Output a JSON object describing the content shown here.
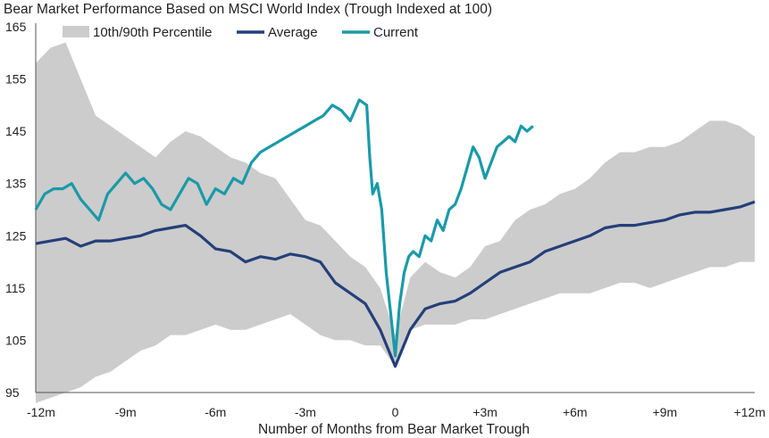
{
  "chart_data": {
    "type": "line",
    "title": "Bear Market Performance Based on MSCI World Index (Trough Indexed at 100)",
    "xlabel": "Number of Months from Bear Market Trough",
    "ylabel": "",
    "xlim": [
      -12,
      12
    ],
    "ylim": [
      95,
      165
    ],
    "yticks": [
      95,
      105,
      115,
      125,
      135,
      145,
      155,
      165
    ],
    "xticks": [
      -12,
      -9,
      -6,
      -3,
      0,
      3,
      6,
      9,
      12
    ],
    "xtick_labels": [
      "-12m",
      "-9m",
      "-6m",
      "-3m",
      "0",
      "+3m",
      "+6m",
      "+9m",
      "+12m"
    ],
    "legend_position": "top",
    "grid": false,
    "colors": {
      "band": "#cccccc",
      "average": "#243f7a",
      "current": "#1a9aa8",
      "axis": "#555555"
    },
    "series": [
      {
        "name": "10th/90th Percentile",
        "kind": "band",
        "x": [
          -12,
          -11.5,
          -11,
          -10.5,
          -10,
          -9.5,
          -9,
          -8.5,
          -8,
          -7.5,
          -7,
          -6.5,
          -6,
          -5.5,
          -5,
          -4.5,
          -4,
          -3.5,
          -3,
          -2.5,
          -2,
          -1.5,
          -1,
          -0.5,
          0,
          0.5,
          1,
          1.5,
          2,
          2.5,
          3,
          3.5,
          4,
          4.5,
          5,
          5.5,
          6,
          6.5,
          7,
          7.5,
          8,
          8.5,
          9,
          9.5,
          10,
          10.5,
          11,
          11.5,
          12
        ],
        "upper": [
          158,
          161,
          162,
          155,
          148,
          146,
          144,
          142,
          140,
          143,
          145,
          144,
          142,
          140,
          139,
          137,
          136,
          132,
          128,
          127,
          124,
          121,
          119,
          115,
          106,
          117,
          120,
          118,
          117,
          119,
          123,
          124,
          128,
          130,
          131,
          133,
          134,
          136,
          139,
          141,
          141,
          142,
          142,
          143,
          145,
          147,
          147,
          146,
          144
        ],
        "lower": [
          93,
          94,
          95,
          96,
          98,
          99,
          101,
          103,
          104,
          106,
          106,
          107,
          108,
          107,
          107,
          108,
          109,
          110,
          108,
          106,
          105,
          105,
          104,
          104,
          100,
          107,
          108,
          108,
          108,
          109,
          109,
          110,
          111,
          112,
          113,
          114,
          114,
          114,
          115,
          116,
          116,
          115,
          116,
          117,
          118,
          119,
          119,
          120,
          120
        ]
      },
      {
        "name": "Average",
        "x": [
          -12,
          -11.5,
          -11,
          -10.5,
          -10,
          -9.5,
          -9,
          -8.5,
          -8,
          -7.5,
          -7,
          -6.5,
          -6,
          -5.5,
          -5,
          -4.5,
          -4,
          -3.5,
          -3,
          -2.5,
          -2,
          -1.5,
          -1,
          -0.5,
          0,
          0.5,
          1,
          1.5,
          2,
          2.5,
          3,
          3.5,
          4,
          4.5,
          5,
          5.5,
          6,
          6.5,
          7,
          7.5,
          8,
          8.5,
          9,
          9.5,
          10,
          10.5,
          11,
          11.5,
          12
        ],
        "values": [
          123.5,
          124,
          124.5,
          123,
          124,
          124,
          124.5,
          125,
          126,
          126.5,
          127,
          125,
          122.5,
          122,
          120,
          121,
          120.5,
          121.5,
          121,
          120,
          116,
          114,
          112,
          107,
          100,
          107,
          111,
          112,
          112.5,
          114,
          116,
          118,
          119,
          120,
          122,
          123,
          124,
          125,
          126.5,
          127,
          127,
          127.5,
          128,
          129,
          129.5,
          129.5,
          130,
          130.5,
          131.5
        ]
      },
      {
        "name": "Current",
        "x": [
          -12,
          -11.7,
          -11.4,
          -11.1,
          -10.8,
          -10.5,
          -10.2,
          -9.9,
          -9.6,
          -9.3,
          -9,
          -8.7,
          -8.4,
          -8.1,
          -7.8,
          -7.5,
          -7.2,
          -6.9,
          -6.6,
          -6.3,
          -6,
          -5.7,
          -5.4,
          -5.1,
          -4.8,
          -4.5,
          -4.2,
          -3.9,
          -3.6,
          -3.3,
          -3,
          -2.7,
          -2.4,
          -2.1,
          -1.8,
          -1.5,
          -1.2,
          -0.95,
          -0.85,
          -0.75,
          -0.6,
          -0.45,
          -0.3,
          -0.15,
          0,
          0.15,
          0.3,
          0.45,
          0.6,
          0.8,
          1,
          1.2,
          1.4,
          1.6,
          1.8,
          2,
          2.2,
          2.4,
          2.6,
          2.8,
          3,
          3.2,
          3.4,
          3.6,
          3.8,
          4,
          4.2,
          4.4,
          4.6
        ],
        "values": [
          130,
          133,
          134,
          134,
          135,
          132,
          130,
          128,
          133,
          135,
          137,
          135,
          136,
          134,
          131,
          130,
          133,
          136,
          135,
          131,
          134,
          133,
          136,
          135,
          139,
          141,
          142,
          143,
          144,
          145,
          146,
          147,
          148,
          150,
          149,
          147,
          151,
          150,
          140,
          133,
          135,
          130,
          118,
          110,
          102,
          112,
          118,
          121,
          122,
          121,
          125,
          124,
          128,
          126,
          130,
          131,
          134,
          138,
          142,
          140,
          136,
          139,
          142,
          143,
          144,
          143,
          146,
          145,
          146
        ]
      }
    ]
  }
}
